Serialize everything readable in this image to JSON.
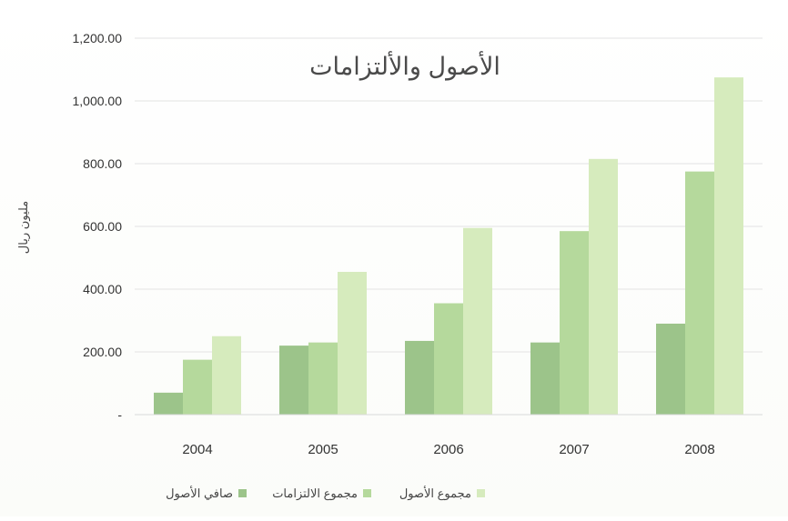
{
  "chart_data": {
    "type": "bar",
    "title": "الأصول والألتزامات",
    "ylabel": "مليون ريال",
    "xlabel": "",
    "categories": [
      "2004",
      "2005",
      "2006",
      "2007",
      "2008"
    ],
    "y_ticks": [
      0,
      200,
      400,
      600,
      800,
      1000,
      1200
    ],
    "y_tick_labels": [
      "-",
      "200.00",
      "400.00",
      "600.00",
      "800.00",
      "1,000.00",
      "1,200.00"
    ],
    "ylim": [
      0,
      1200
    ],
    "grid": true,
    "legend_position": "bottom",
    "series": [
      {
        "name": "صافي الأصول",
        "values": [
          70,
          220,
          235,
          230,
          290
        ],
        "color": "#9cc48a"
      },
      {
        "name": "مجموع الالتزامات",
        "values": [
          175,
          230,
          355,
          585,
          775
        ],
        "color": "#b5d99c"
      },
      {
        "name": "مجموع الأصول",
        "values": [
          250,
          455,
          595,
          815,
          1075
        ],
        "color": "#d6ebbd"
      }
    ]
  }
}
